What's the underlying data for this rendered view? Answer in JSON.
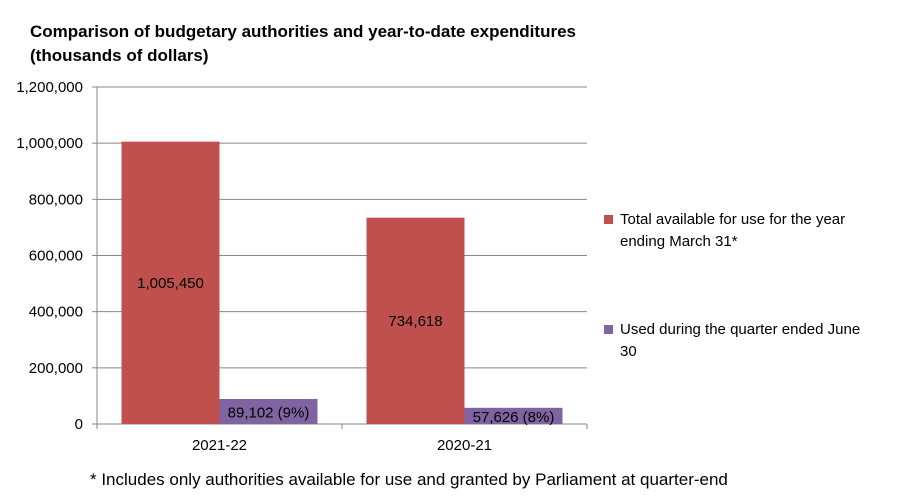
{
  "chart_data": {
    "type": "bar",
    "title_line1": "Comparison of budgetary authorities and year-to-date expenditures",
    "title_line2": "(thousands of dollars)",
    "categories": [
      "2021-22",
      "2020-21"
    ],
    "series": [
      {
        "name": "Total available for use for the year ending  March 31*",
        "legend_lines": [
          "Total available for use for the year",
          "ending  March 31*"
        ],
        "color": "#c0504d",
        "values": [
          1005450,
          734618
        ],
        "labels": [
          "1,005,450",
          "734,618"
        ]
      },
      {
        "name": "Used during the quarter ended June 30",
        "legend_lines": [
          "Used during the quarter ended June",
          "30"
        ],
        "color": "#8064a2",
        "values": [
          89102,
          57626
        ],
        "labels": [
          "89,102 (9%)",
          "57,626 (8%)"
        ]
      }
    ],
    "ylim": [
      0,
      1200000
    ],
    "yticks": [
      0,
      200000,
      400000,
      600000,
      800000,
      1000000,
      1200000
    ],
    "ytick_labels": [
      "0",
      "200,000",
      "400,000",
      "600,000",
      "800,000",
      "1,000,000",
      "1,200,000"
    ],
    "grid": true,
    "legend": "right"
  },
  "footnote": "* Includes only authorities available for use and granted by Parliament at quarter-end"
}
